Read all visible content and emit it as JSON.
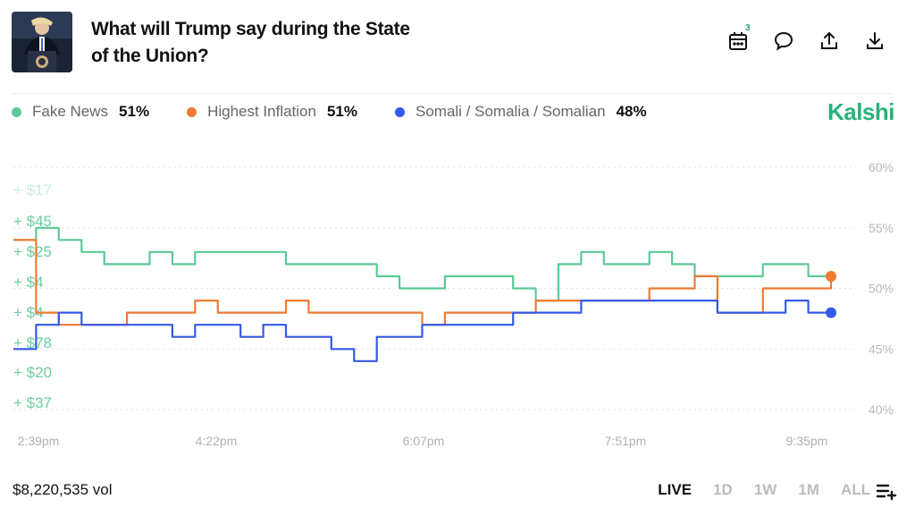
{
  "header": {
    "title": "What will Trump say during the State of the Union?",
    "calendar_badge": "3",
    "icons": [
      "calendar-icon",
      "comment-icon",
      "share-icon",
      "download-icon"
    ]
  },
  "legend": [
    {
      "name": "Fake News",
      "value": "51%",
      "color": "#5cc996"
    },
    {
      "name": "Highest Inflation",
      "value": "51%",
      "color": "#f07a32"
    },
    {
      "name": "Somali / Somalia / Somalian",
      "value": "48%",
      "color": "#3559e8"
    }
  ],
  "brand": "Kalshi",
  "trades": [
    "+ $17",
    "+ $45",
    "+ $25",
    "+ $4",
    "+ $4",
    "+ $78",
    "+ $20",
    "+ $37"
  ],
  "footer": {
    "volume": "$8,220,535 vol",
    "ranges": [
      "LIVE",
      "1D",
      "1W",
      "1M",
      "ALL"
    ],
    "active_range": "LIVE"
  },
  "chart_data": {
    "type": "line",
    "x_ticks": [
      "2:39pm",
      "4:22pm",
      "6:07pm",
      "7:51pm",
      "9:35pm"
    ],
    "y_ticks": [
      "60%",
      "55%",
      "50%",
      "45%",
      "40%"
    ],
    "ylim": [
      40,
      60
    ],
    "grid": true,
    "series": [
      {
        "name": "Fake News",
        "color": "#5cc996",
        "values": [
          54,
          55,
          54,
          53,
          52,
          52,
          53,
          52,
          53,
          53,
          53,
          53,
          52,
          52,
          52,
          52,
          51,
          50,
          50,
          51,
          51,
          51,
          50,
          49,
          52,
          53,
          52,
          52,
          53,
          52,
          51,
          51,
          51,
          52,
          52,
          51,
          51
        ]
      },
      {
        "name": "Highest Inflation",
        "color": "#f07a32",
        "values": [
          54,
          48,
          47,
          47,
          47,
          48,
          48,
          48,
          49,
          48,
          48,
          48,
          49,
          48,
          48,
          48,
          48,
          48,
          47,
          48,
          48,
          48,
          48,
          49,
          49,
          49,
          49,
          49,
          50,
          50,
          51,
          48,
          48,
          50,
          50,
          50,
          51
        ]
      },
      {
        "name": "Somali / Somalia / Somalian",
        "color": "#3559e8",
        "values": [
          45,
          47,
          48,
          47,
          47,
          47,
          47,
          46,
          47,
          47,
          46,
          47,
          46,
          46,
          45,
          44,
          46,
          46,
          47,
          47,
          47,
          47,
          48,
          48,
          48,
          49,
          49,
          49,
          49,
          49,
          49,
          48,
          48,
          48,
          49,
          48,
          48
        ]
      }
    ]
  }
}
